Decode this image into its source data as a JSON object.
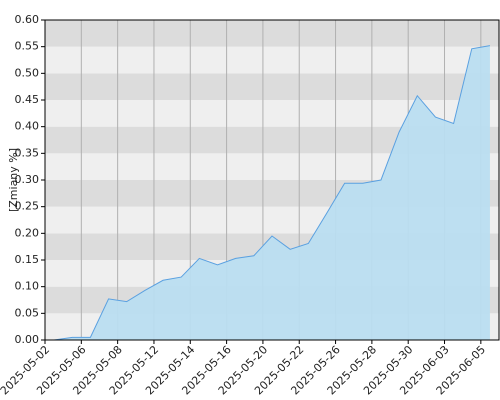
{
  "chart_data": {
    "type": "area",
    "y_label": "[Zmiany %]",
    "categories": [
      "2025-05-02",
      null,
      "2025-05-06",
      null,
      "2025-05-08",
      null,
      "2025-05-12",
      null,
      "2025-05-14",
      null,
      "2025-05-16",
      null,
      "2025-05-20",
      null,
      "2025-05-22",
      null,
      "2025-05-26",
      null,
      "2025-05-28",
      null,
      "2025-05-30",
      null,
      "2025-06-03",
      null,
      "2025-06-05"
    ],
    "values": [
      0.0,
      0.005,
      0.005,
      0.077,
      0.072,
      0.093,
      0.112,
      0.118,
      0.153,
      0.141,
      0.153,
      0.158,
      0.195,
      0.17,
      0.181,
      0.237,
      0.294,
      0.294,
      0.3,
      0.39,
      0.458,
      0.418,
      0.406,
      0.546,
      0.552
    ],
    "color": "#5aa0e0",
    "fill": "#b9ddf0",
    "ylim": [
      0,
      0.6
    ],
    "yticks": [
      {
        "value": 0,
        "label": "0.00"
      },
      0.05,
      {
        "value": 0.1,
        "label": "0.10"
      },
      0.15,
      {
        "value": 0.2,
        "label": "0.20"
      },
      0.25,
      {
        "value": 0.3,
        "label": "0.30"
      },
      0.35,
      {
        "value": 0.4,
        "label": "0.40"
      },
      0.45,
      {
        "value": 0.5,
        "label": "0.50"
      },
      0.55,
      {
        "value": 0.6,
        "label": "0.60"
      }
    ],
    "grid": true
  }
}
